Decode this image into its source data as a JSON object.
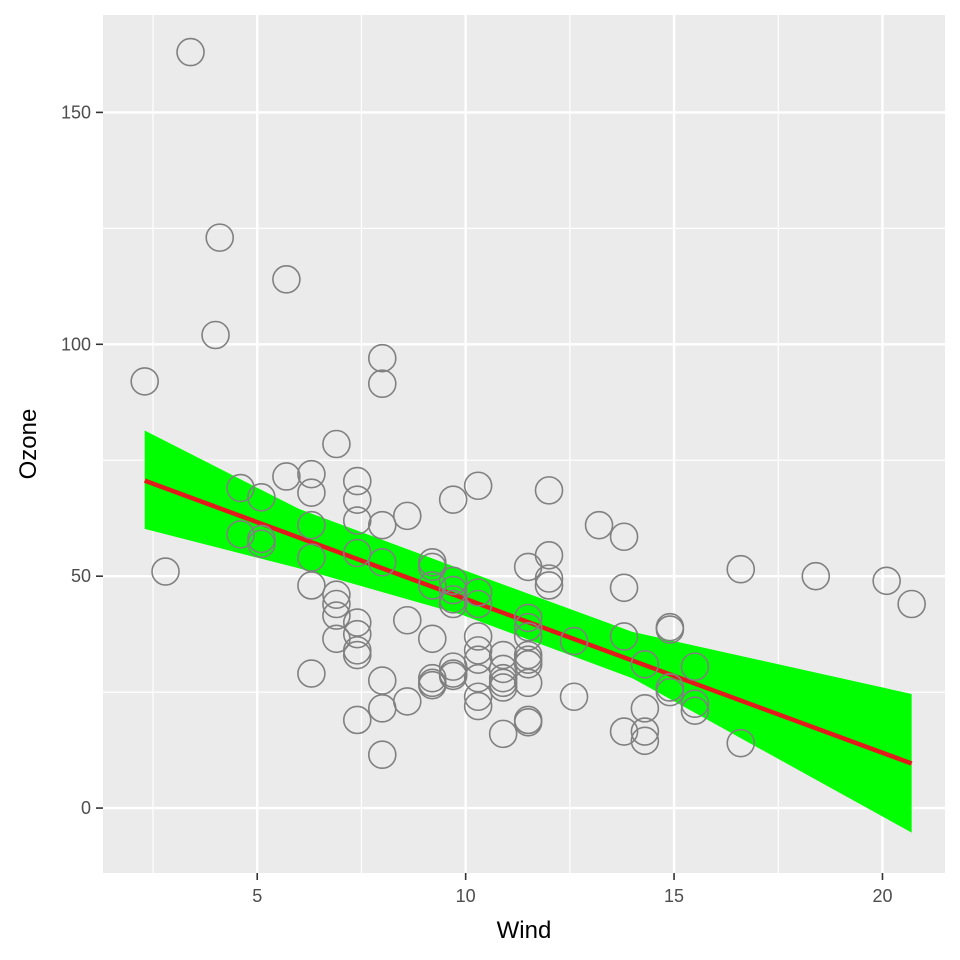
{
  "chart_data": {
    "type": "scatter",
    "xlabel": "Wind",
    "ylabel": "Ozone",
    "xlim": [
      1.3,
      21.5
    ],
    "ylim": [
      -14,
      171
    ],
    "x_major_ticks": [
      5,
      10,
      15,
      20
    ],
    "y_major_ticks": [
      0,
      50,
      100,
      150
    ],
    "x_tick_labels": [
      "5",
      "10",
      "15",
      "20"
    ],
    "y_tick_labels": [
      "0",
      "50",
      "100",
      "150"
    ],
    "x_minor_ticks": [
      2.5,
      7.5,
      12.5,
      17.5
    ],
    "y_minor_ticks": [
      25,
      75,
      125
    ],
    "grid": true,
    "legend": "none",
    "colors": {
      "panel_background": "#ebebeb",
      "grid": "#ffffff",
      "point_stroke": "#808080",
      "regression_line": "#e31a1c",
      "confidence_band": "#00ff00"
    },
    "points": [
      [
        3.4,
        163
      ],
      [
        4.1,
        123
      ],
      [
        4.0,
        102
      ],
      [
        5.7,
        114
      ],
      [
        2.3,
        92
      ],
      [
        8.0,
        97
      ],
      [
        8.0,
        91.5
      ],
      [
        2.8,
        51
      ],
      [
        4.6,
        69
      ],
      [
        5.1,
        67
      ],
      [
        4.6,
        59
      ],
      [
        5.1,
        57
      ],
      [
        5.1,
        58
      ],
      [
        5.7,
        71.5
      ],
      [
        6.3,
        72
      ],
      [
        6.3,
        68
      ],
      [
        6.3,
        61
      ],
      [
        6.3,
        54
      ],
      [
        6.3,
        48
      ],
      [
        6.3,
        29
      ],
      [
        6.9,
        78.5
      ],
      [
        6.9,
        46
      ],
      [
        6.9,
        44
      ],
      [
        6.9,
        41.5
      ],
      [
        6.9,
        36.5
      ],
      [
        7.4,
        70.5
      ],
      [
        7.4,
        66.5
      ],
      [
        7.4,
        62
      ],
      [
        7.4,
        55
      ],
      [
        7.4,
        40
      ],
      [
        7.4,
        37.5
      ],
      [
        7.4,
        34
      ],
      [
        7.4,
        33
      ],
      [
        7.4,
        19
      ],
      [
        8.0,
        61
      ],
      [
        8.0,
        53
      ],
      [
        8.0,
        27.5
      ],
      [
        8.0,
        21.5
      ],
      [
        8.0,
        11.5
      ],
      [
        8.6,
        63
      ],
      [
        8.6,
        40.5
      ],
      [
        8.6,
        23
      ],
      [
        9.2,
        53
      ],
      [
        9.2,
        52
      ],
      [
        9.2,
        48
      ],
      [
        9.2,
        36.5
      ],
      [
        9.2,
        28
      ],
      [
        9.2,
        27
      ],
      [
        9.2,
        26.5
      ],
      [
        9.7,
        66.5
      ],
      [
        9.7,
        49
      ],
      [
        9.7,
        47
      ],
      [
        9.7,
        45
      ],
      [
        9.7,
        44
      ],
      [
        9.7,
        30.5
      ],
      [
        9.7,
        29
      ],
      [
        9.7,
        28.5
      ],
      [
        10.3,
        69.5
      ],
      [
        10.3,
        46.5
      ],
      [
        10.3,
        44
      ],
      [
        10.3,
        37
      ],
      [
        10.3,
        34
      ],
      [
        10.3,
        32
      ],
      [
        10.3,
        28
      ],
      [
        10.3,
        24
      ],
      [
        10.3,
        22
      ],
      [
        10.9,
        33
      ],
      [
        10.9,
        30
      ],
      [
        10.9,
        28
      ],
      [
        10.9,
        27
      ],
      [
        10.9,
        26
      ],
      [
        10.9,
        16
      ],
      [
        11.5,
        52
      ],
      [
        11.5,
        41
      ],
      [
        11.5,
        39
      ],
      [
        11.5,
        37
      ],
      [
        11.5,
        33
      ],
      [
        11.5,
        32
      ],
      [
        11.5,
        31
      ],
      [
        11.5,
        27
      ],
      [
        11.5,
        19
      ],
      [
        11.5,
        18.5
      ],
      [
        12.0,
        68.5
      ],
      [
        12.0,
        54.5
      ],
      [
        12.0,
        49.5
      ],
      [
        12.0,
        48
      ],
      [
        12.6,
        36
      ],
      [
        12.6,
        24
      ],
      [
        13.2,
        61
      ],
      [
        13.8,
        58.5
      ],
      [
        13.8,
        47.5
      ],
      [
        13.8,
        37
      ],
      [
        13.8,
        16.5
      ],
      [
        14.3,
        31
      ],
      [
        14.3,
        21.5
      ],
      [
        14.3,
        16.5
      ],
      [
        14.3,
        14.5
      ],
      [
        14.9,
        39
      ],
      [
        14.9,
        38.5
      ],
      [
        14.9,
        26
      ],
      [
        14.9,
        25
      ],
      [
        15.5,
        30.5
      ],
      [
        15.5,
        22.5
      ],
      [
        15.5,
        21
      ],
      [
        16.6,
        51.5
      ],
      [
        16.6,
        14
      ],
      [
        18.4,
        50
      ],
      [
        20.1,
        49
      ],
      [
        20.7,
        44
      ]
    ],
    "regression": {
      "x": [
        2.3,
        20.7
      ],
      "y": [
        70.6,
        9.6
      ]
    },
    "confidence_band": {
      "x": [
        2.3,
        6,
        9.9,
        14,
        20.7
      ],
      "upper": [
        81.4,
        64.5,
        51.5,
        38.0,
        24.6
      ],
      "lower": [
        60.2,
        51.7,
        41.7,
        28.0,
        -5.3
      ]
    }
  }
}
